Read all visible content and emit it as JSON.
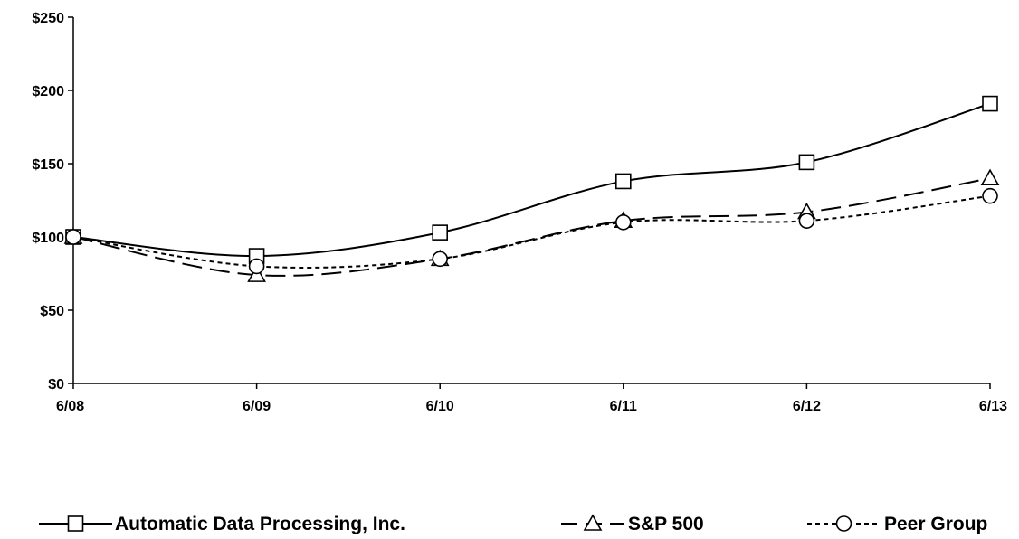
{
  "chart_data": {
    "type": "line",
    "title": "",
    "xlabel": "",
    "ylabel": "",
    "categories": [
      "6/08",
      "6/09",
      "6/10",
      "6/11",
      "6/12",
      "6/13"
    ],
    "ylim": [
      0,
      250
    ],
    "yticks": [
      0,
      50,
      100,
      150,
      200,
      250
    ],
    "ytick_labels": [
      "$0",
      "$50",
      "$100",
      "$150",
      "$200",
      "$250"
    ],
    "grid": false,
    "legend_position": "bottom",
    "series": [
      {
        "name": "Automatic Data Processing, Inc.",
        "values": [
          100,
          87,
          103,
          138,
          151,
          191
        ],
        "line_style": "solid",
        "marker": "square",
        "color": "#000000"
      },
      {
        "name": "S&P 500",
        "values": [
          100,
          74,
          85,
          111,
          117,
          140
        ],
        "line_style": "long-dash",
        "marker": "triangle",
        "color": "#000000"
      },
      {
        "name": "Peer Group",
        "values": [
          100,
          80,
          85,
          110,
          111,
          128
        ],
        "line_style": "short-dash",
        "marker": "circle",
        "color": "#000000"
      }
    ]
  }
}
